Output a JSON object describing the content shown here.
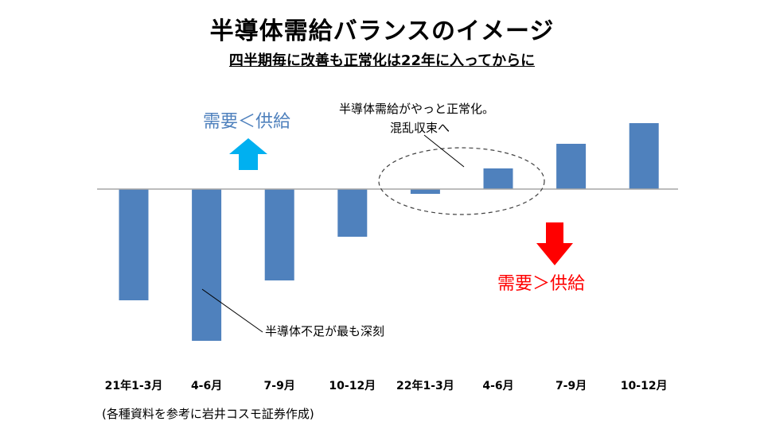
{
  "header": {
    "title": "半導体需給バランスのイメージ",
    "subtitle": "四半期毎に改善も正常化は22年に入ってからに"
  },
  "footer": {
    "source": "(各種資料を参考に岩井コスモ証券作成)"
  },
  "colors": {
    "bar": "#4f81bd",
    "up_arrow": "#00b0f0",
    "down_arrow": "#ff0000",
    "up_label": "#4f81bd",
    "down_label": "#ff0000",
    "axis": "#a6a6a6"
  },
  "chart_data": {
    "type": "bar",
    "title": "半導体需給バランスのイメージ",
    "subtitle": "四半期毎に改善も正常化は22年に入ってからに",
    "categories": [
      "21年1-3月",
      "4-6月",
      "7-9月",
      "10-12月",
      "22年1-3月",
      "4-6月",
      "7-9月",
      "10-12月"
    ],
    "values": [
      -140,
      -191,
      -115,
      -60,
      -6,
      26,
      57,
      83
    ],
    "ylim": [
      -200,
      100
    ],
    "grid": false,
    "annotations": {
      "upper_label": "需要＜供給",
      "lower_label": "需要＞供給",
      "shortage_note": "半導体不足が最も深刻",
      "normal_note_line1": "半導体需給がやっと正常化。",
      "normal_note_line2": "混乱収束へ"
    }
  }
}
